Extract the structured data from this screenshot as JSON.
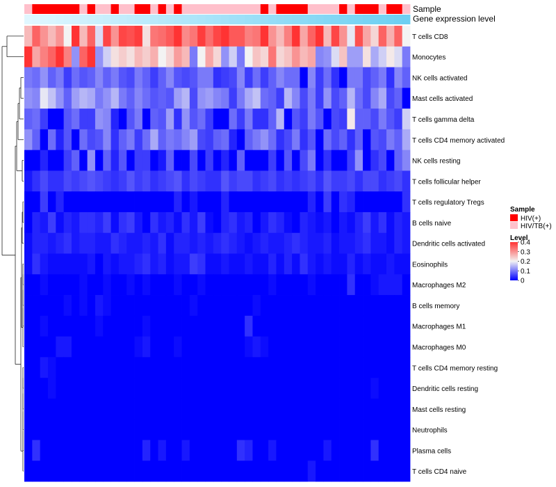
{
  "chart_data": {
    "type": "heatmap",
    "title": "",
    "annotation_tracks": [
      "Sample",
      "Gene expression level"
    ],
    "rows": [
      "T cells CD8",
      "Monocytes",
      "NK cells activated",
      "Mast cells activated",
      "T cells gamma delta",
      "T cells CD4 memory activated",
      "NK cells resting",
      "T cells follicular helper",
      "T cells regulatory  Tregs",
      "B cells naive",
      "Dendritic cells activated",
      "Eosinophils",
      "Macrophages M2",
      "B cells memory",
      "Macrophages M1",
      "Macrophages M0",
      "T cells CD4 memory resting",
      "Dendritic cells resting",
      "Mast cells resting",
      "Neutrophils",
      "Plasma cells",
      "T cells CD4 naive"
    ],
    "sample_groups": "PRRRRRRPRPPRPPRRPRPRPPPPPPPPPPRPRRRRPPPPRPRRRPRRP",
    "values": [
      [
        0.26,
        0.35,
        0.3,
        0.26,
        0.3,
        0.2,
        0.4,
        0.26,
        0.35,
        0.18,
        0.38,
        0.3,
        0.38,
        0.37,
        0.39,
        0.22,
        0.33,
        0.34,
        0.36,
        0.4,
        0.31,
        0.33,
        0.39,
        0.34,
        0.38,
        0.4,
        0.36,
        0.36,
        0.32,
        0.33,
        0.4,
        0.3,
        0.26,
        0.32,
        0.4,
        0.28,
        0.35,
        0.4,
        0.26,
        0.38,
        0.3,
        0.19,
        0.37,
        0.28,
        0.23,
        0.35,
        0.27,
        0.35,
        0.2
      ],
      [
        0.4,
        0.28,
        0.32,
        0.35,
        0.4,
        0.32,
        0.12,
        0.35,
        0.4,
        0.12,
        0.17,
        0.22,
        0.24,
        0.22,
        0.26,
        0.24,
        0.27,
        0.2,
        0.23,
        0.29,
        0.26,
        0.1,
        0.2,
        0.28,
        0.23,
        0.12,
        0.17,
        0.1,
        0.2,
        0.25,
        0.23,
        0.33,
        0.23,
        0.25,
        0.3,
        0.26,
        0.28,
        0.11,
        0.12,
        0.18,
        0.25,
        0.13,
        0.13,
        0.22,
        0.14,
        0.17,
        0.21,
        0.18,
        0.1
      ],
      [
        0.1,
        0.09,
        0.12,
        0.08,
        0.1,
        0.05,
        0.09,
        0.07,
        0.08,
        0.11,
        0.08,
        0.1,
        0.07,
        0.06,
        0.1,
        0.08,
        0.05,
        0.08,
        0.11,
        0.07,
        0.06,
        0.07,
        0.1,
        0.1,
        0.04,
        0.05,
        0.06,
        0.11,
        0.05,
        0.09,
        0.05,
        0.08,
        0.11,
        0.09,
        0.09,
        0.0,
        0.11,
        0.05,
        0.09,
        0.04,
        0.0,
        0.1,
        0.1,
        0.06,
        0.08,
        0.1,
        0.04,
        0.11,
        0.08
      ],
      [
        0.12,
        0.11,
        0.19,
        0.16,
        0.12,
        0.08,
        0.13,
        0.15,
        0.14,
        0.1,
        0.12,
        0.15,
        0.1,
        0.08,
        0.11,
        0.09,
        0.07,
        0.08,
        0.07,
        0.13,
        0.15,
        0.06,
        0.12,
        0.13,
        0.11,
        0.1,
        0.05,
        0.1,
        0.14,
        0.16,
        0.09,
        0.08,
        0.05,
        0.15,
        0.11,
        0.06,
        0.1,
        0.05,
        0.12,
        0.06,
        0.08,
        0.15,
        0.09,
        0.06,
        0.11,
        0.14,
        0.06,
        0.08,
        0.0
      ],
      [
        0.08,
        0.09,
        0.05,
        0.0,
        0.0,
        0.07,
        0.09,
        0.05,
        0.05,
        0.12,
        0.11,
        0.03,
        0.0,
        0.07,
        0.1,
        0.0,
        0.08,
        0.07,
        0.13,
        0.04,
        0.12,
        0.07,
        0.09,
        0.05,
        0.0,
        0.0,
        0.09,
        0.05,
        0.1,
        0.04,
        0.04,
        0.08,
        0.15,
        0.0,
        0.07,
        0.05,
        0.1,
        0.07,
        0.0,
        0.06,
        0.05,
        0.21,
        0.08,
        0.08,
        0.06,
        0.1,
        0.07,
        0.05,
        0.17
      ],
      [
        0.12,
        0.08,
        0.0,
        0.09,
        0.03,
        0.07,
        0.0,
        0.09,
        0.06,
        0.07,
        0.11,
        0.04,
        0.08,
        0.1,
        0.05,
        0.09,
        0.14,
        0.08,
        0.1,
        0.09,
        0.11,
        0.13,
        0.06,
        0.05,
        0.08,
        0.09,
        0.03,
        0.0,
        0.08,
        0.1,
        0.12,
        0.09,
        0.04,
        0.06,
        0.1,
        0.04,
        0.07,
        0.0,
        0.09,
        0.06,
        0.08,
        0.04,
        0.08,
        0.0,
        0.07,
        0.06,
        0.1,
        0.08,
        0.14
      ],
      [
        0.0,
        0.0,
        0.03,
        0.0,
        0.0,
        0.05,
        0.08,
        0.0,
        0.12,
        0.0,
        0.08,
        0.03,
        0.07,
        0.0,
        0.05,
        0.05,
        0.0,
        0.02,
        0.08,
        0.0,
        0.0,
        0.06,
        0.0,
        0.05,
        0.0,
        0.03,
        0.0,
        0.08,
        0.0,
        0.0,
        0.0,
        0.05,
        0.0,
        0.07,
        0.0,
        0.06,
        0.1,
        0.0,
        0.04,
        0.0,
        0.0,
        0.05,
        0.12,
        0.0,
        0.04,
        0.06,
        0.0,
        0.08,
        0.11
      ],
      [
        0.02,
        0.04,
        0.06,
        0.04,
        0.04,
        0.06,
        0.05,
        0.06,
        0.07,
        0.06,
        0.05,
        0.04,
        0.05,
        0.07,
        0.05,
        0.06,
        0.04,
        0.05,
        0.06,
        0.07,
        0.04,
        0.06,
        0.05,
        0.04,
        0.04,
        0.07,
        0.05,
        0.06,
        0.06,
        0.04,
        0.05,
        0.06,
        0.04,
        0.05,
        0.04,
        0.05,
        0.06,
        0.04,
        0.07,
        0.05,
        0.05,
        0.06,
        0.04,
        0.06,
        0.06,
        0.04,
        0.05,
        0.06,
        0.04
      ],
      [
        0.0,
        0.0,
        0.05,
        0.0,
        0.03,
        0.0,
        0.0,
        0.0,
        0.0,
        0.0,
        0.0,
        0.0,
        0.0,
        0.0,
        0.0,
        0.0,
        0.0,
        0.0,
        0.0,
        0.03,
        0.0,
        0.02,
        0.0,
        0.0,
        0.0,
        0.03,
        0.0,
        0.0,
        0.0,
        0.0,
        0.0,
        0.0,
        0.0,
        0.0,
        0.0,
        0.0,
        0.03,
        0.0,
        0.05,
        0.0,
        0.04,
        0.03,
        0.0,
        0.0,
        0.0,
        0.0,
        0.0,
        0.0,
        0.04
      ],
      [
        0.0,
        0.03,
        0.02,
        0.05,
        0.01,
        0.03,
        0.02,
        0.04,
        0.04,
        0.03,
        0.05,
        0.01,
        0.04,
        0.05,
        0.02,
        0.0,
        0.04,
        0.02,
        0.03,
        0.01,
        0.04,
        0.02,
        0.05,
        0.01,
        0.0,
        0.03,
        0.04,
        0.02,
        0.03,
        0.0,
        0.02,
        0.04,
        0.03,
        0.01,
        0.0,
        0.03,
        0.02,
        0.01,
        0.02,
        0.0,
        0.02,
        0.01,
        0.03,
        0.05,
        0.02,
        0.04,
        0.01,
        0.03,
        0.02
      ],
      [
        0.01,
        0.03,
        0.03,
        0.02,
        0.03,
        0.04,
        0.02,
        0.03,
        0.03,
        0.02,
        0.02,
        0.04,
        0.03,
        0.02,
        0.02,
        0.03,
        0.02,
        0.04,
        0.01,
        0.03,
        0.03,
        0.02,
        0.03,
        0.02,
        0.03,
        0.04,
        0.03,
        0.02,
        0.01,
        0.02,
        0.03,
        0.02,
        0.02,
        0.03,
        0.04,
        0.03,
        0.02,
        0.02,
        0.03,
        0.01,
        0.02,
        0.02,
        0.03,
        0.04,
        0.02,
        0.02,
        0.01,
        0.03,
        0.02
      ],
      [
        0.01,
        0.04,
        0.02,
        0.01,
        0.01,
        0.01,
        0.01,
        0.01,
        0.02,
        0.0,
        0.02,
        0.01,
        0.02,
        0.02,
        0.03,
        0.04,
        0.02,
        0.03,
        0.01,
        0.02,
        0.02,
        0.05,
        0.04,
        0.01,
        0.01,
        0.02,
        0.01,
        0.01,
        0.02,
        0.01,
        0.01,
        0.03,
        0.01,
        0.03,
        0.01,
        0.04,
        0.02,
        0.01,
        0.02,
        0.01,
        0.01,
        0.03,
        0.01,
        0.02,
        0.01,
        0.01,
        0.02,
        0.01,
        0.01
      ],
      [
        0.0,
        0.0,
        0.01,
        0.0,
        0.0,
        0.0,
        0.0,
        0.01,
        0.0,
        0.0,
        0.01,
        0.0,
        0.0,
        0.01,
        0.0,
        0.01,
        0.0,
        0.0,
        0.0,
        0.01,
        0.0,
        0.0,
        0.01,
        0.0,
        0.0,
        0.0,
        0.0,
        0.0,
        0.0,
        0.0,
        0.0,
        0.01,
        0.0,
        0.0,
        0.0,
        0.0,
        0.01,
        0.0,
        0.0,
        0.0,
        0.0,
        0.04,
        0.0,
        0.0,
        0.01,
        0.02,
        0.02,
        0.02,
        0.0
      ],
      [
        0.0,
        0.0,
        0.0,
        0.0,
        0.0,
        0.01,
        0.0,
        0.01,
        0.0,
        0.02,
        0.01,
        0.0,
        0.0,
        0.0,
        0.0,
        0.0,
        0.0,
        0.0,
        0.0,
        0.0,
        0.0,
        0.01,
        0.0,
        0.0,
        0.0,
        0.0,
        0.0,
        0.0,
        0.0,
        0.01,
        0.0,
        0.0,
        0.0,
        0.0,
        0.0,
        0.0,
        0.0,
        0.0,
        0.0,
        0.0,
        0.0,
        0.0,
        0.0,
        0.0,
        0.0,
        0.0,
        0.0,
        0.0,
        0.0
      ],
      [
        0.0,
        0.0,
        0.01,
        0.0,
        0.0,
        0.0,
        0.0,
        0.0,
        0.0,
        0.01,
        0.0,
        0.0,
        0.0,
        0.0,
        0.0,
        0.01,
        0.0,
        0.0,
        0.0,
        0.0,
        0.0,
        0.0,
        0.0,
        0.0,
        0.0,
        0.0,
        0.0,
        0.0,
        0.04,
        0.0,
        0.0,
        0.0,
        0.0,
        0.0,
        0.0,
        0.0,
        0.0,
        0.0,
        0.0,
        0.0,
        0.0,
        0.0,
        0.0,
        0.0,
        0.0,
        0.0,
        0.0,
        0.0,
        0.0
      ],
      [
        0.0,
        0.0,
        0.0,
        0.0,
        0.02,
        0.02,
        0.0,
        0.0,
        0.0,
        0.0,
        0.0,
        0.0,
        0.0,
        0.0,
        0.01,
        0.02,
        0.0,
        0.0,
        0.0,
        0.01,
        0.0,
        0.0,
        0.0,
        0.0,
        0.0,
        0.0,
        0.0,
        0.0,
        0.01,
        0.02,
        0.01,
        0.0,
        0.0,
        0.0,
        0.0,
        0.0,
        0.0,
        0.0,
        0.0,
        0.0,
        0.0,
        0.0,
        0.0,
        0.0,
        0.0,
        0.0,
        0.0,
        0.0,
        0.0
      ],
      [
        0.0,
        0.0,
        0.02,
        0.01,
        0.0,
        0.0,
        0.0,
        0.0,
        0.0,
        0.0,
        0.0,
        0.0,
        0.0,
        0.0,
        0.0,
        0.0,
        0.0,
        0.0,
        0.0,
        0.0,
        0.0,
        0.0,
        0.0,
        0.0,
        0.0,
        0.0,
        0.0,
        0.0,
        0.0,
        0.0,
        0.0,
        0.0,
        0.0,
        0.0,
        0.0,
        0.0,
        0.0,
        0.0,
        0.0,
        0.0,
        0.0,
        0.0,
        0.0,
        0.0,
        0.0,
        0.0,
        0.0,
        0.0,
        0.0
      ],
      [
        0.0,
        0.0,
        0.0,
        0.01,
        0.0,
        0.0,
        0.0,
        0.0,
        0.0,
        0.0,
        0.0,
        0.0,
        0.0,
        0.0,
        0.0,
        0.0,
        0.0,
        0.0,
        0.0,
        0.0,
        0.0,
        0.0,
        0.0,
        0.0,
        0.0,
        0.0,
        0.0,
        0.0,
        0.0,
        0.0,
        0.0,
        0.0,
        0.0,
        0.0,
        0.0,
        0.0,
        0.0,
        0.0,
        0.0,
        0.0,
        0.0,
        0.0,
        0.0,
        0.0,
        0.01,
        0.0,
        0.0,
        0.0,
        0.0
      ],
      [
        0.0,
        0.0,
        0.0,
        0.0,
        0.0,
        0.0,
        0.0,
        0.0,
        0.0,
        0.0,
        0.0,
        0.0,
        0.0,
        0.0,
        0.0,
        0.0,
        0.0,
        0.0,
        0.0,
        0.0,
        0.0,
        0.0,
        0.0,
        0.0,
        0.0,
        0.0,
        0.0,
        0.0,
        0.0,
        0.0,
        0.0,
        0.0,
        0.0,
        0.0,
        0.0,
        0.0,
        0.0,
        0.0,
        0.0,
        0.0,
        0.0,
        0.0,
        0.0,
        0.0,
        0.0,
        0.0,
        0.0,
        0.0,
        0.0
      ],
      [
        0.0,
        0.0,
        0.0,
        0.0,
        0.0,
        0.0,
        0.0,
        0.0,
        0.0,
        0.0,
        0.0,
        0.0,
        0.0,
        0.0,
        0.0,
        0.0,
        0.0,
        0.0,
        0.0,
        0.0,
        0.0,
        0.0,
        0.0,
        0.0,
        0.0,
        0.0,
        0.0,
        0.0,
        0.0,
        0.0,
        0.0,
        0.0,
        0.0,
        0.0,
        0.0,
        0.0,
        0.0,
        0.0,
        0.0,
        0.0,
        0.0,
        0.0,
        0.0,
        0.0,
        0.0,
        0.0,
        0.0,
        0.0,
        0.0
      ],
      [
        0.0,
        0.04,
        0.0,
        0.0,
        0.0,
        0.0,
        0.0,
        0.0,
        0.0,
        0.0,
        0.0,
        0.0,
        0.0,
        0.0,
        0.0,
        0.03,
        0.0,
        0.02,
        0.0,
        0.0,
        0.02,
        0.0,
        0.0,
        0.0,
        0.0,
        0.0,
        0.0,
        0.04,
        0.03,
        0.0,
        0.0,
        0.02,
        0.0,
        0.0,
        0.0,
        0.0,
        0.0,
        0.0,
        0.02,
        0.0,
        0.0,
        0.0,
        0.0,
        0.0,
        0.04,
        0.0,
        0.0,
        0.0,
        0.0
      ],
      [
        0.0,
        0.0,
        0.0,
        0.0,
        0.0,
        0.0,
        0.0,
        0.0,
        0.0,
        0.0,
        0.0,
        0.0,
        0.0,
        0.0,
        0.0,
        0.0,
        0.0,
        0.0,
        0.0,
        0.0,
        0.0,
        0.0,
        0.0,
        0.0,
        0.0,
        0.0,
        0.0,
        0.0,
        0.0,
        0.0,
        0.0,
        0.0,
        0.0,
        0.0,
        0.0,
        0.0,
        0.02,
        0.0,
        0.0,
        0.0,
        0.0,
        0.0,
        0.0,
        0.0,
        0.0,
        0.0,
        0.0,
        0.0,
        0.0
      ]
    ],
    "legend": {
      "sample_title": "Sample",
      "sample_entries": [
        {
          "label": "HIV(+)",
          "color": "#ff0000"
        },
        {
          "label": "HIV/TB(+)",
          "color": "#ffc0cb"
        }
      ],
      "level_title": "Level",
      "level_ticks": [
        "0.4",
        "0.3",
        "0.2",
        "0.1",
        "0"
      ],
      "level_range": [
        0,
        0.4
      ],
      "level_colors": [
        "#0000ff",
        "#f3f3f3",
        "#ff3333"
      ]
    },
    "gene_expression_colors": [
      "#e0f7ff",
      "#6ccff2"
    ],
    "xlabel": "",
    "ylabel": ""
  }
}
